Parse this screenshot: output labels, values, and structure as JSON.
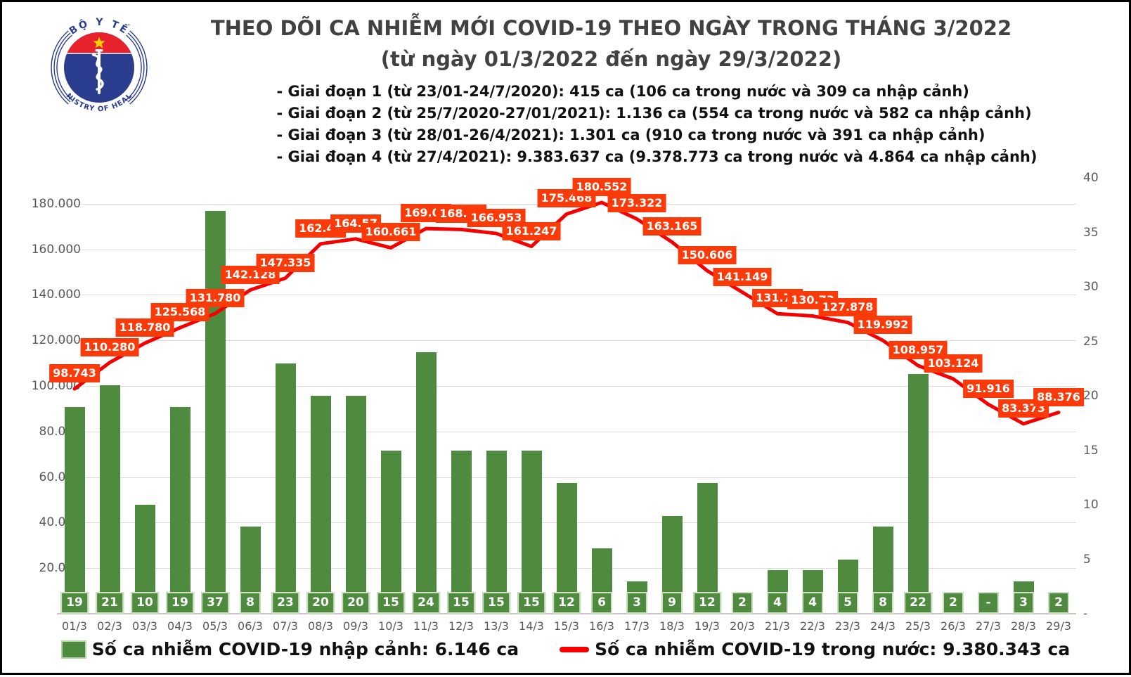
{
  "logo": {
    "top_text": "BỘ Y TẾ",
    "bottom_text": "MINISTRY OF HEALTH"
  },
  "title": {
    "line1": "THEO DÕI CA NHIỄM MỚI COVID-19 THEO NGÀY TRONG THÁNG 3/2022",
    "line2": "(từ ngày 01/3/2022 đến ngày 29/3/2022)"
  },
  "notes": [
    "- Giai đoạn 1 (từ 23/01-24/7/2020): 415 ca (106 ca trong nước và 309 ca nhập cảnh)",
    "- Giai đoạn 2 (từ 25/7/2020-27/01/2021): 1.136 ca (554 ca trong nước và 582 ca nhập cảnh)",
    "- Giai đoạn 3 (từ 28/01-26/4/2021): 1.301 ca (910 ca trong nước và 391 ca nhập cảnh)",
    "- Giai đoạn 4 (từ 27/4/2021): 9.383.637 ca (9.378.773 ca trong nước và 4.864 ca nhập cảnh)"
  ],
  "chart_data": {
    "type": "bar+line combo",
    "categories": [
      "01/3",
      "02/3",
      "03/3",
      "04/3",
      "05/3",
      "06/3",
      "07/3",
      "08/3",
      "09/3",
      "10/3",
      "11/3",
      "12/3",
      "13/3",
      "14/3",
      "15/3",
      "16/3",
      "17/3",
      "18/3",
      "19/3",
      "20/3",
      "21/3",
      "22/3",
      "23/3",
      "24/3",
      "25/3",
      "26/3",
      "27/3",
      "28/3",
      "29/3"
    ],
    "series": [
      {
        "name": "Số ca nhiễm COVID-19 nhập cảnh",
        "type": "bar",
        "axis": "right",
        "color": "#4e8b3f",
        "values": [
          19,
          21,
          10,
          19,
          37,
          8,
          23,
          20,
          20,
          15,
          24,
          15,
          15,
          15,
          12,
          6,
          3,
          9,
          12,
          2,
          4,
          4,
          5,
          8,
          22,
          2,
          0,
          3,
          2
        ],
        "labels": [
          "19",
          "21",
          "10",
          "19",
          "37",
          "8",
          "23",
          "20",
          "20",
          "15",
          "24",
          "15",
          "15",
          "15",
          "12",
          "6",
          "3",
          "9",
          "12",
          "2",
          "4",
          "4",
          "5",
          "8",
          "22",
          "2",
          "-",
          "3",
          "2"
        ]
      },
      {
        "name": "Số ca nhiễm COVID-19 trong nước",
        "type": "line",
        "axis": "left",
        "color": "#f40000",
        "values": [
          98743,
          110280,
          118780,
          125568,
          131780,
          142128,
          147335,
          162410,
          164570,
          160661,
          169090,
          168700,
          166953,
          161247,
          175468,
          180552,
          173322,
          163165,
          150606,
          141149,
          131700,
          130730,
          127878,
          119992,
          108957,
          103124,
          91916,
          83373,
          88376
        ],
        "labels": [
          "98.743",
          "110.280",
          "118.780",
          "125.568",
          "131.780",
          "142.128",
          "147.335",
          "162.41",
          "164.57",
          "160.661",
          "169.09",
          "168.70",
          "166.953",
          "161.247",
          "175.468",
          "180.552",
          "173.322",
          "163.165",
          "150.606",
          "141.149",
          "131.70",
          "130.73",
          "127.878",
          "119.992",
          "108.957",
          "103.124",
          "91.916",
          "83.373",
          "88.376"
        ]
      }
    ],
    "left_axis": {
      "ticks_top_to_bottom": [
        "180.000",
        "160.000",
        "140.000",
        "120.000",
        "100.000",
        "80.000",
        "60.000",
        "40.000",
        "20.000"
      ],
      "zero_label": "-",
      "max": 190000,
      "grid": true
    },
    "right_axis": {
      "ticks_top_to_bottom": [
        "40",
        "35",
        "30",
        "25",
        "20",
        "15",
        "10",
        "5"
      ],
      "zero_label": "-",
      "max": 40
    },
    "label_box_color": "#fb3a0a",
    "bar_badge_border": "#cfdfc3"
  },
  "legend": {
    "imported": "Số ca nhiễm COVID-19 nhập cảnh: 6.146 ca",
    "domestic": "Số ca nhiễm COVID-19 trong nước: 9.380.343 ca"
  }
}
